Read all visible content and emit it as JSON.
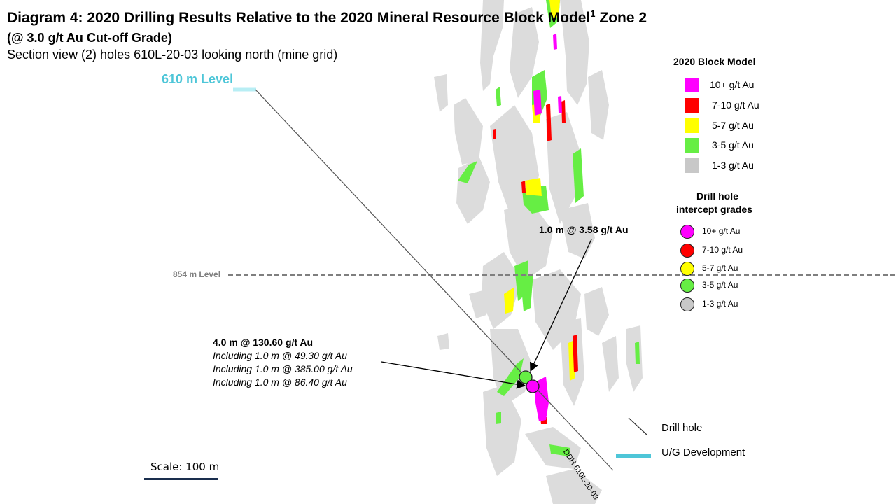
{
  "title": {
    "main": "Diagram 4: 2020 Drilling Results Relative to the 2020 Mineral Resource Block Model",
    "sup": "1",
    "tail": " Zone 2"
  },
  "subtitle": "(@ 3.0 g/t Au Cut-off Grade)",
  "section_text": "Section view (2) holes 610L-20-03 looking north (mine grid)",
  "levels": {
    "upper": "610 m Level",
    "middle": "854 m Level"
  },
  "colors": {
    "grade_10_plus": "#ff00ff",
    "grade_7_10": "#ff0000",
    "grade_5_7": "#ffff00",
    "grade_3_5": "#66ee44",
    "grade_1_3": "#d9d9d9",
    "development": "#4ec6d8",
    "level_line": "#7f7f7f"
  },
  "block_model_legend": {
    "title": "2020 Block Model",
    "items": [
      {
        "label": "10+ g/t Au",
        "color": "#ff00ff"
      },
      {
        "label": "7-10 g/t Au",
        "color": "#ff0000"
      },
      {
        "label": "5-7 g/t Au",
        "color": "#ffff00"
      },
      {
        "label": "3-5 g/t Au",
        "color": "#66ee44"
      },
      {
        "label": "1-3 g/t Au",
        "color": "#c8c8c8"
      }
    ]
  },
  "drillhole_legend": {
    "title_line1": "Drill hole",
    "title_line2": "intercept grades",
    "items": [
      {
        "label": "10+ g/t Au",
        "color": "#ff00ff"
      },
      {
        "label": "7-10 g/t Au",
        "color": "#ff0000"
      },
      {
        "label": "5-7 g/t Au",
        "color": "#ffff00"
      },
      {
        "label": "3-5 g/t Au",
        "color": "#66ee44"
      },
      {
        "label": "1-3 g/t Au",
        "color": "#c8c8c8"
      }
    ]
  },
  "intercepts": {
    "small": "1.0 m @ 3.58 g/t Au",
    "main": {
      "headline": "4.0 m @ 130.60 g/t Au",
      "including": [
        "Including 1.0 m @ 49.30 g/t Au",
        "Including 1.0 m @ 385.00 g/t Au",
        "Including 1.0 m @ 86.40 g/t Au"
      ]
    }
  },
  "drillhole_name": "DDH 610L-20-03",
  "line_legend": {
    "drill_hole": "Drill hole",
    "development": "U/G Development"
  },
  "scale": {
    "label": "Scale: 100 m"
  }
}
